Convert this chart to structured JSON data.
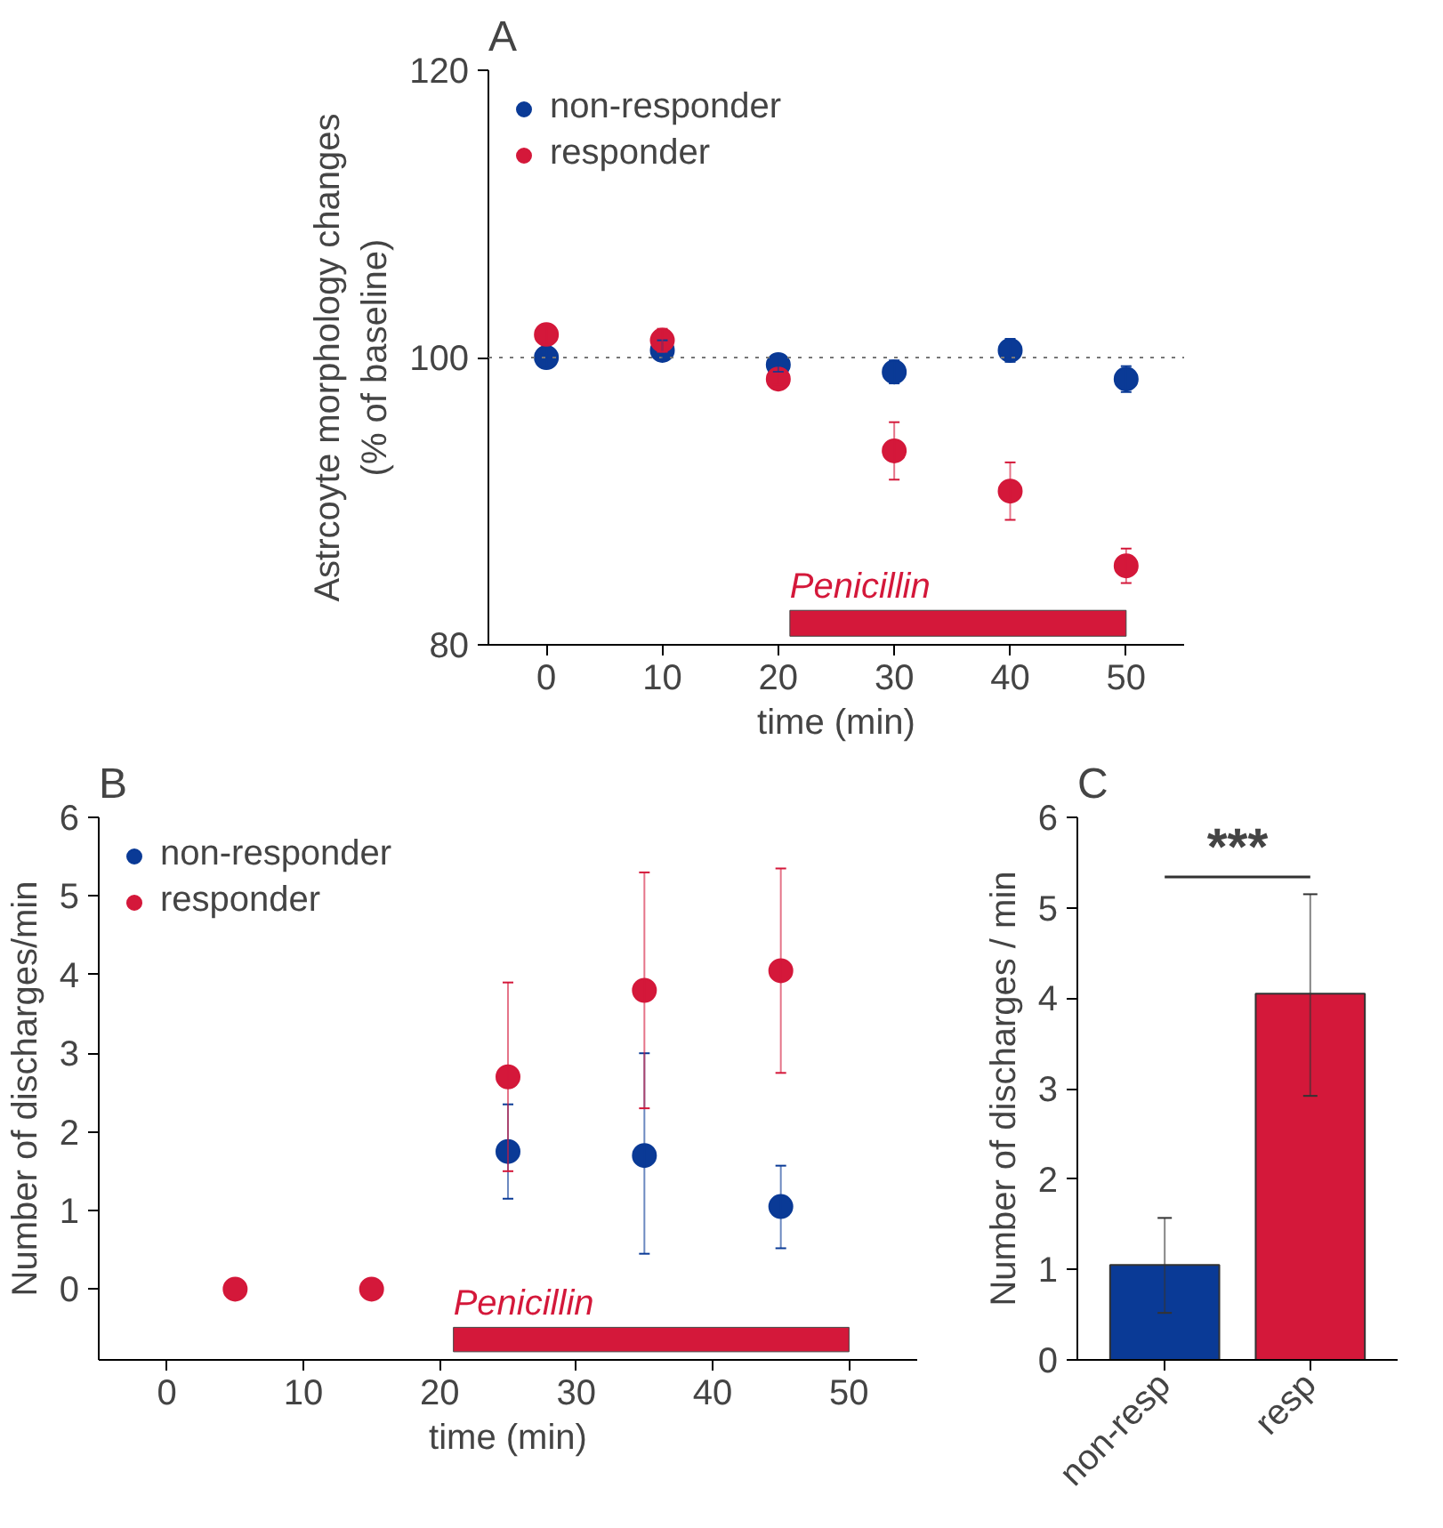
{
  "chart_data": [
    {
      "type": "scatter",
      "title": "A",
      "xlabel": "time (min)",
      "ylabel": "Astrcoyte morphology changes\n(% of baseline)",
      "x": [
        0,
        10,
        20,
        30,
        40,
        50
      ],
      "xlim": [
        -5,
        55
      ],
      "xticks": [
        0,
        10,
        20,
        30,
        40,
        50
      ],
      "ylim": [
        80,
        120
      ],
      "yticks": [
        80,
        100,
        120
      ],
      "grid": false,
      "legend": "top left",
      "marker": "circle",
      "series": [
        {
          "name": "non-responder",
          "color": "#0a3a96",
          "values": [
            100,
            100.5,
            99.5,
            99,
            100.5,
            98.5
          ],
          "errors": [
            0.7,
            0.7,
            0.5,
            0.8,
            0.8,
            0.9
          ]
        },
        {
          "name": "responder",
          "color": "#d4183a",
          "values": [
            101.6,
            101.2,
            98.5,
            93.5,
            90.7,
            85.5
          ],
          "errors": [
            0.7,
            0.8,
            0.4,
            2.0,
            2.0,
            1.2
          ]
        }
      ],
      "ref_lines": [
        {
          "axis": "y",
          "value": 100,
          "label": null,
          "color": "#777777",
          "line_style": "dotted"
        }
      ],
      "bands": [
        {
          "axis": "x",
          "from": 21,
          "to": 50,
          "label": "Penicillin",
          "color": "#d4183a"
        }
      ]
    },
    {
      "type": "scatter",
      "title": "B",
      "xlabel": "time (min)",
      "ylabel": "Number of discharges/min",
      "xlim": [
        -5,
        55
      ],
      "xticks": [
        0,
        10,
        20,
        30,
        40,
        50
      ],
      "ylim": [
        -0.9,
        6
      ],
      "yticks": [
        0,
        1,
        2,
        3,
        4,
        5,
        6
      ],
      "grid": false,
      "legend": "top left",
      "marker": "circle",
      "series": [
        {
          "name": "non-responder",
          "color": "#0a3a96",
          "x": [
            25,
            35,
            45
          ],
          "values": [
            1.75,
            1.7,
            1.05
          ],
          "errors": [
            [
              1.15,
              2.35
            ],
            [
              0.45,
              3.0
            ],
            [
              0.52,
              1.57
            ]
          ]
        },
        {
          "name": "responder",
          "color": "#d4183a",
          "x": [
            5,
            15,
            25,
            35,
            45
          ],
          "values": [
            0,
            0,
            2.7,
            3.8,
            4.05
          ],
          "errors": [
            null,
            null,
            [
              1.5,
              3.9
            ],
            [
              2.3,
              5.3
            ],
            [
              2.75,
              5.35
            ]
          ]
        }
      ],
      "bands": [
        {
          "axis": "x",
          "from": 21,
          "to": 50,
          "label": "Penicillin",
          "color": "#d4183a"
        }
      ]
    },
    {
      "type": "bar",
      "title": "C",
      "ylabel": "Number of discharges / min",
      "categories": [
        "non-resp",
        "resp"
      ],
      "values": [
        1.05,
        4.05
      ],
      "colors": [
        "#0a3a96",
        "#d4183a"
      ],
      "errors": [
        [
          0.52,
          1.57
        ],
        [
          2.92,
          5.15
        ]
      ],
      "ylim": [
        0,
        6
      ],
      "yticks": [
        0,
        1,
        2,
        3,
        4,
        5,
        6
      ],
      "grid": false,
      "annotations": [
        "***"
      ]
    }
  ]
}
